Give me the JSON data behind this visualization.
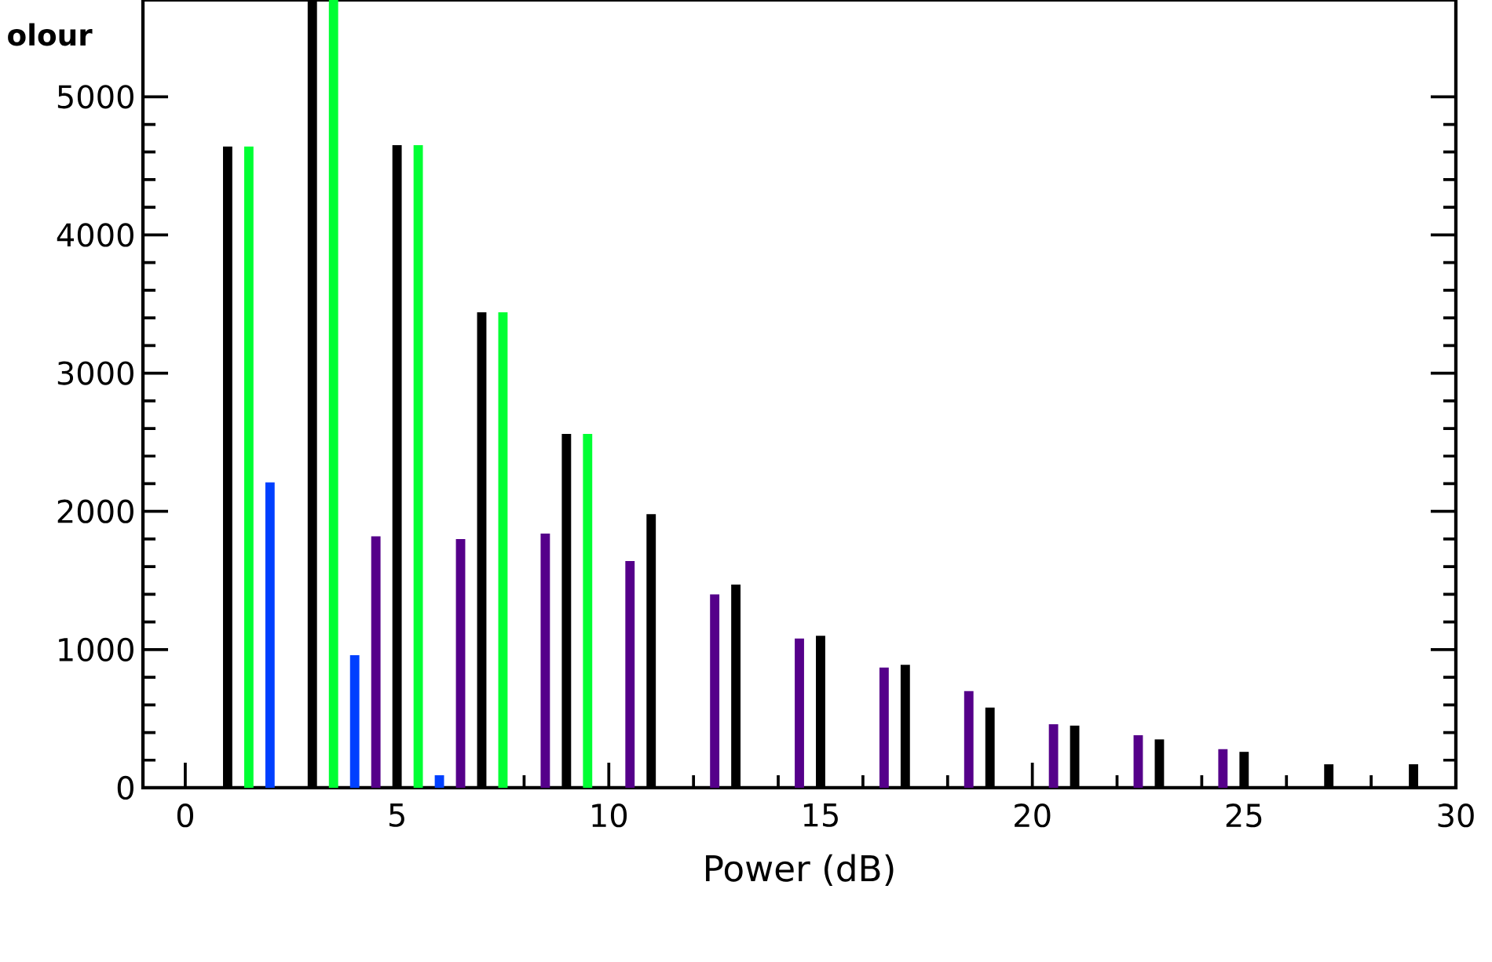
{
  "chart_data": {
    "type": "bar",
    "xlabel": "Power (dB)",
    "annotations": [
      "olour"
    ],
    "xlim": [
      -1,
      30
    ],
    "xticks": [
      0,
      5,
      10,
      15,
      20,
      25,
      30
    ],
    "ylim": [
      0,
      5700
    ],
    "yticks": [
      0,
      1000,
      2000,
      3000,
      4000,
      5000
    ],
    "grid": false,
    "series": [
      {
        "color": "#000000",
        "x": [
          1,
          3,
          5,
          7,
          9,
          11,
          13,
          15,
          17,
          19,
          21,
          23,
          25,
          27,
          29
        ],
        "values": [
          4640,
          5700,
          4650,
          3440,
          2560,
          1980,
          1470,
          1100,
          890,
          580,
          450,
          350,
          260,
          170,
          170
        ]
      },
      {
        "color": "#00ff33",
        "x": [
          1.5,
          3.5,
          5.5,
          7.5,
          9.5
        ],
        "values": [
          4640,
          5700,
          4650,
          3440,
          2560
        ]
      },
      {
        "color": "#0040ff",
        "x": [
          2,
          4,
          6
        ],
        "values": [
          2210,
          960,
          90
        ]
      },
      {
        "color": "#55008a",
        "x": [
          4.5,
          6.5,
          8.5,
          10.5,
          12.5,
          14.5,
          16.5,
          18.5,
          20.5,
          22.5,
          24.5
        ],
        "values": [
          1820,
          1800,
          1840,
          1640,
          1400,
          1080,
          870,
          700,
          460,
          380,
          280
        ]
      }
    ]
  }
}
